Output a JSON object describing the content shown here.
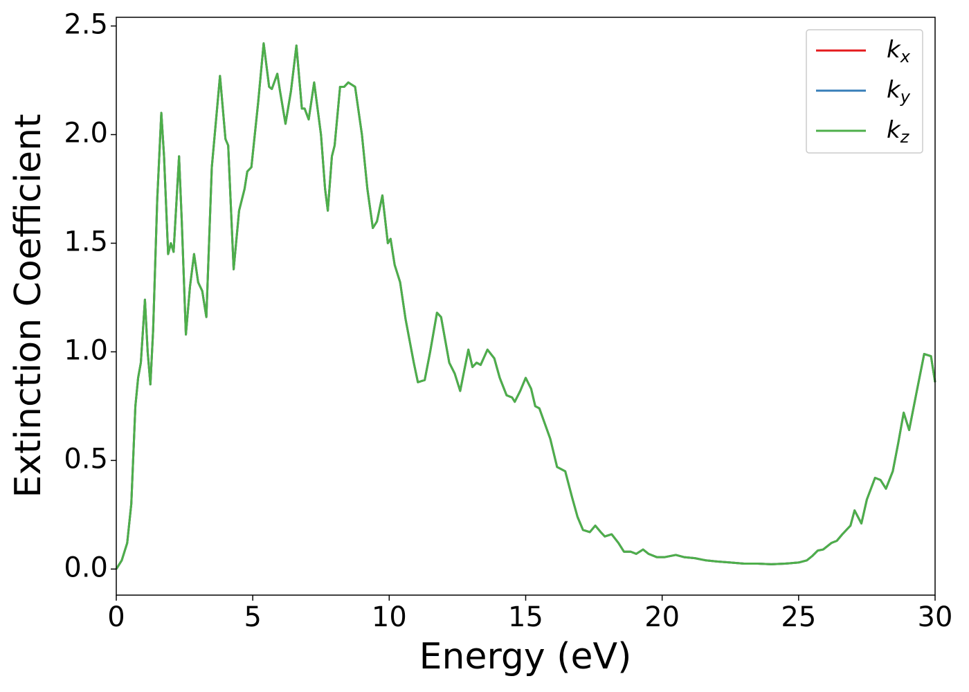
{
  "chart_data": {
    "type": "line",
    "xlabel": "Energy (eV)",
    "ylabel": "Extinction Coefficient",
    "xlim": [
      0,
      30
    ],
    "ylim": [
      -0.12,
      2.54
    ],
    "xticks": [
      0,
      5,
      10,
      15,
      20,
      25,
      30
    ],
    "yticks": [
      {
        "value": 0,
        "label": "0.0"
      },
      {
        "value": 0.5,
        "label": "0.5"
      },
      {
        "value": 1,
        "label": "1.0"
      },
      {
        "value": 1.5,
        "label": "1.5"
      },
      {
        "value": 2,
        "label": "2.0"
      },
      {
        "value": 2.5,
        "label": "2.5"
      }
    ],
    "legend": "upper right",
    "x": [
      0,
      0.2,
      0.4,
      0.55,
      0.7,
      0.8,
      0.9,
      1.05,
      1.15,
      1.25,
      1.35,
      1.5,
      1.65,
      1.75,
      1.9,
      2.0,
      2.1,
      2.3,
      2.4,
      2.55,
      2.7,
      2.85,
      3.0,
      3.15,
      3.3,
      3.5,
      3.8,
      4.0,
      4.1,
      4.3,
      4.5,
      4.7,
      4.8,
      4.95,
      5.2,
      5.4,
      5.6,
      5.7,
      5.9,
      6.0,
      6.2,
      6.4,
      6.6,
      6.8,
      6.9,
      7.05,
      7.25,
      7.5,
      7.65,
      7.75,
      7.9,
      8.0,
      8.2,
      8.35,
      8.5,
      8.75,
      9.0,
      9.2,
      9.4,
      9.55,
      9.75,
      9.95,
      10.05,
      10.2,
      10.4,
      10.6,
      10.9,
      11.05,
      11.3,
      11.5,
      11.75,
      11.9,
      12.2,
      12.4,
      12.6,
      12.9,
      13.05,
      13.2,
      13.35,
      13.6,
      13.85,
      14.05,
      14.3,
      14.5,
      14.6,
      14.8,
      15.0,
      15.2,
      15.35,
      15.5,
      15.7,
      15.9,
      16.15,
      16.45,
      16.7,
      16.9,
      17.1,
      17.35,
      17.55,
      17.75,
      17.9,
      18.15,
      18.4,
      18.6,
      18.85,
      19.05,
      19.3,
      19.5,
      19.8,
      20.1,
      20.5,
      20.8,
      21.2,
      21.6,
      22.0,
      22.5,
      23.0,
      23.5,
      24.0,
      24.5,
      25.0,
      25.3,
      25.5,
      25.7,
      25.9,
      26.2,
      26.4,
      26.6,
      26.9,
      27.05,
      27.3,
      27.5,
      27.8,
      28.0,
      28.2,
      28.45,
      28.65,
      28.85,
      29.05,
      29.3,
      29.6,
      29.85,
      30
    ],
    "series": [
      {
        "name": "kx",
        "color": "#e41a1c",
        "values": [
          0,
          0.04,
          0.12,
          0.3,
          0.75,
          0.88,
          0.95,
          1.24,
          1.0,
          0.85,
          1.1,
          1.7,
          2.1,
          1.9,
          1.45,
          1.5,
          1.46,
          1.9,
          1.6,
          1.08,
          1.3,
          1.45,
          1.32,
          1.28,
          1.16,
          1.85,
          2.27,
          1.98,
          1.95,
          1.38,
          1.65,
          1.75,
          1.83,
          1.85,
          2.15,
          2.42,
          2.22,
          2.21,
          2.28,
          2.2,
          2.05,
          2.2,
          2.41,
          2.12,
          2.12,
          2.07,
          2.24,
          2.0,
          1.75,
          1.65,
          1.9,
          1.95,
          2.22,
          2.22,
          2.24,
          2.22,
          2.0,
          1.75,
          1.57,
          1.6,
          1.72,
          1.5,
          1.52,
          1.4,
          1.32,
          1.15,
          0.95,
          0.86,
          0.87,
          1.0,
          1.18,
          1.16,
          0.95,
          0.9,
          0.82,
          1.01,
          0.93,
          0.95,
          0.94,
          1.01,
          0.97,
          0.88,
          0.8,
          0.79,
          0.77,
          0.82,
          0.88,
          0.83,
          0.75,
          0.74,
          0.67,
          0.6,
          0.47,
          0.45,
          0.33,
          0.24,
          0.18,
          0.17,
          0.2,
          0.17,
          0.15,
          0.16,
          0.12,
          0.08,
          0.08,
          0.07,
          0.09,
          0.07,
          0.055,
          0.055,
          0.065,
          0.055,
          0.05,
          0.04,
          0.035,
          0.03,
          0.025,
          0.025,
          0.022,
          0.025,
          0.03,
          0.04,
          0.06,
          0.085,
          0.09,
          0.12,
          0.13,
          0.16,
          0.2,
          0.27,
          0.21,
          0.32,
          0.42,
          0.41,
          0.37,
          0.45,
          0.58,
          0.72,
          0.64,
          0.8,
          0.99,
          0.98,
          0.86
        ]
      },
      {
        "name": "ky",
        "color": "#377eb8",
        "values": [
          0,
          0.04,
          0.12,
          0.3,
          0.75,
          0.88,
          0.95,
          1.24,
          1.0,
          0.85,
          1.1,
          1.7,
          2.1,
          1.9,
          1.45,
          1.5,
          1.46,
          1.9,
          1.6,
          1.08,
          1.3,
          1.45,
          1.32,
          1.28,
          1.16,
          1.85,
          2.27,
          1.98,
          1.95,
          1.38,
          1.65,
          1.75,
          1.83,
          1.85,
          2.15,
          2.42,
          2.22,
          2.21,
          2.28,
          2.2,
          2.05,
          2.2,
          2.41,
          2.12,
          2.12,
          2.07,
          2.24,
          2.0,
          1.75,
          1.65,
          1.9,
          1.95,
          2.22,
          2.22,
          2.24,
          2.22,
          2.0,
          1.75,
          1.57,
          1.6,
          1.72,
          1.5,
          1.52,
          1.4,
          1.32,
          1.15,
          0.95,
          0.86,
          0.87,
          1.0,
          1.18,
          1.16,
          0.95,
          0.9,
          0.82,
          1.01,
          0.93,
          0.95,
          0.94,
          1.01,
          0.97,
          0.88,
          0.8,
          0.79,
          0.77,
          0.82,
          0.88,
          0.83,
          0.75,
          0.74,
          0.67,
          0.6,
          0.47,
          0.45,
          0.33,
          0.24,
          0.18,
          0.17,
          0.2,
          0.17,
          0.15,
          0.16,
          0.12,
          0.08,
          0.08,
          0.07,
          0.09,
          0.07,
          0.055,
          0.055,
          0.065,
          0.055,
          0.05,
          0.04,
          0.035,
          0.03,
          0.025,
          0.025,
          0.022,
          0.025,
          0.03,
          0.04,
          0.06,
          0.085,
          0.09,
          0.12,
          0.13,
          0.16,
          0.2,
          0.27,
          0.21,
          0.32,
          0.42,
          0.41,
          0.37,
          0.45,
          0.58,
          0.72,
          0.64,
          0.8,
          0.99,
          0.98,
          0.86
        ]
      },
      {
        "name": "kz",
        "color": "#4daf4a",
        "values": [
          0,
          0.04,
          0.12,
          0.3,
          0.75,
          0.88,
          0.95,
          1.24,
          1.0,
          0.85,
          1.1,
          1.7,
          2.1,
          1.9,
          1.45,
          1.5,
          1.46,
          1.9,
          1.6,
          1.08,
          1.3,
          1.45,
          1.32,
          1.28,
          1.16,
          1.85,
          2.27,
          1.98,
          1.95,
          1.38,
          1.65,
          1.75,
          1.83,
          1.85,
          2.15,
          2.42,
          2.22,
          2.21,
          2.28,
          2.2,
          2.05,
          2.2,
          2.41,
          2.12,
          2.12,
          2.07,
          2.24,
          2.0,
          1.75,
          1.65,
          1.9,
          1.95,
          2.22,
          2.22,
          2.24,
          2.22,
          2.0,
          1.75,
          1.57,
          1.6,
          1.72,
          1.5,
          1.52,
          1.4,
          1.32,
          1.15,
          0.95,
          0.86,
          0.87,
          1.0,
          1.18,
          1.16,
          0.95,
          0.9,
          0.82,
          1.01,
          0.93,
          0.95,
          0.94,
          1.01,
          0.97,
          0.88,
          0.8,
          0.79,
          0.77,
          0.82,
          0.88,
          0.83,
          0.75,
          0.74,
          0.67,
          0.6,
          0.47,
          0.45,
          0.33,
          0.24,
          0.18,
          0.17,
          0.2,
          0.17,
          0.15,
          0.16,
          0.12,
          0.08,
          0.08,
          0.07,
          0.09,
          0.07,
          0.055,
          0.055,
          0.065,
          0.055,
          0.05,
          0.04,
          0.035,
          0.03,
          0.025,
          0.025,
          0.022,
          0.025,
          0.03,
          0.04,
          0.06,
          0.085,
          0.09,
          0.12,
          0.13,
          0.16,
          0.2,
          0.27,
          0.21,
          0.32,
          0.42,
          0.41,
          0.37,
          0.45,
          0.58,
          0.72,
          0.64,
          0.8,
          0.99,
          0.98,
          0.86
        ]
      }
    ]
  }
}
